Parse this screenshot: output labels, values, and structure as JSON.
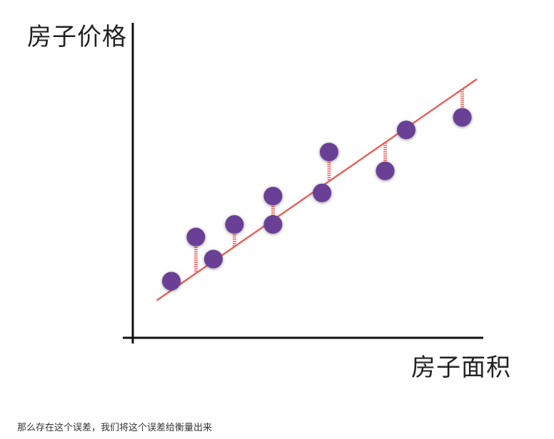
{
  "chart_data": {
    "type": "scatter",
    "xlabel": "房子面积",
    "ylabel": "房子价格",
    "xlim": [
      0,
      100
    ],
    "ylim": [
      0,
      100
    ],
    "grid": false,
    "points": [
      {
        "x": 11,
        "y": 18
      },
      {
        "x": 18,
        "y": 32
      },
      {
        "x": 23,
        "y": 25
      },
      {
        "x": 29,
        "y": 36
      },
      {
        "x": 40,
        "y": 45
      },
      {
        "x": 40,
        "y": 36
      },
      {
        "x": 54,
        "y": 46
      },
      {
        "x": 56,
        "y": 59
      },
      {
        "x": 72,
        "y": 53
      },
      {
        "x": 78,
        "y": 66
      },
      {
        "x": 94,
        "y": 70
      }
    ],
    "fit_line": {
      "x": [
        7,
        98
      ],
      "y": [
        12,
        82
      ]
    },
    "colors": {
      "points": "#6a4096",
      "fit_line": "#e8625c",
      "residuals": "#e8625c",
      "axes": "#111111"
    }
  },
  "caption": "那么存在这个误差，我们将这个误差给衡量出来"
}
